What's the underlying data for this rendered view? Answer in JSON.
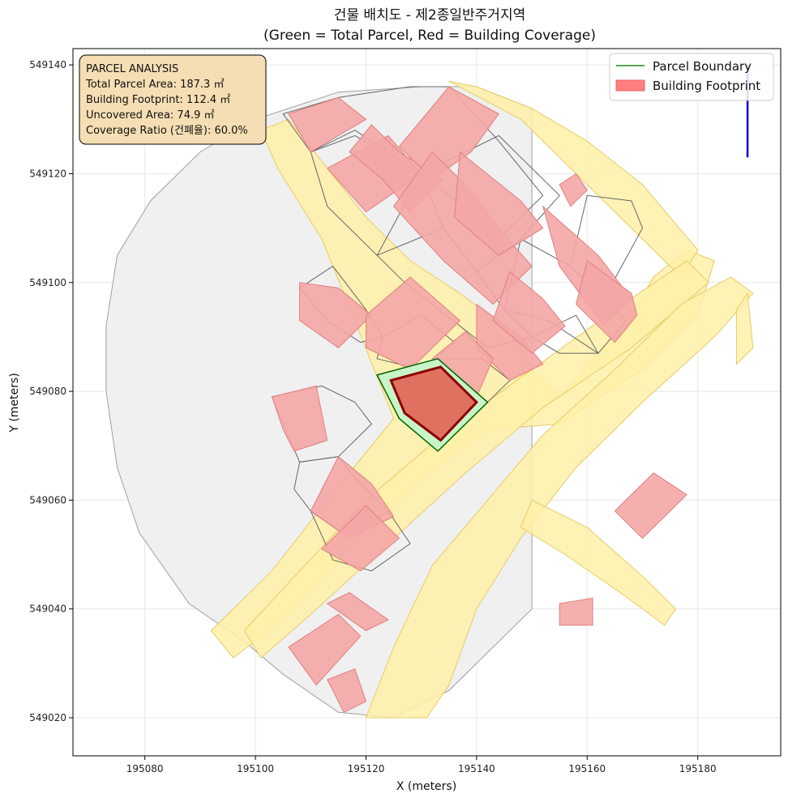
{
  "chart_data": {
    "type": "map",
    "title_line1": "건물 배치도 - 제2종일반주거지역",
    "title_line2": "(Green = Total Parcel, Red = Building Coverage)",
    "xlabel": "X (meters)",
    "ylabel": "Y (meters)",
    "xlim": [
      195067,
      195195
    ],
    "ylim": [
      549013,
      549143
    ],
    "xticks": [
      195080,
      195100,
      195120,
      195140,
      195160,
      195180
    ],
    "yticks": [
      549020,
      549040,
      549060,
      549080,
      549100,
      549120,
      549140
    ],
    "grid": true,
    "legend": {
      "position": "top-right",
      "items": [
        {
          "label": "Parcel Boundary",
          "kind": "line",
          "color": "#228b22"
        },
        {
          "label": "Building Footprint",
          "kind": "patch",
          "color": "#ff7f7f"
        }
      ]
    },
    "info_box": {
      "lines": [
        "PARCEL ANALYSIS",
        "Total Parcel Area: 187.3 ㎡",
        "Building Footprint: 112.4 ㎡",
        "Uncovered Area: 74.9 ㎡",
        "Coverage Ratio (건폐율): 60.0%"
      ]
    },
    "colors": {
      "parcel_fill": "#c8f5c8",
      "parcel_edge": "#006400",
      "target_building_fill": "#e07060",
      "target_building_edge": "#8b0000",
      "building_fill": "#f4a6a6",
      "building_edge": "#e07f7f",
      "road_fill": "#fff0a8",
      "road_edge": "#e6cc66",
      "background_parcel_fill": "#f0f0f0",
      "north_arrow": "#0000cc",
      "info_box_fill": "#f5deb3"
    },
    "target_parcel": [
      [
        195122,
        549083
      ],
      [
        195133,
        549086
      ],
      [
        195142,
        549078
      ],
      [
        195133,
        549069
      ],
      [
        195126,
        549075
      ]
    ],
    "target_building": [
      [
        195124.5,
        549082
      ],
      [
        195133.5,
        549084.5
      ],
      [
        195140,
        549078
      ],
      [
        195133.5,
        549071
      ],
      [
        195127,
        549076
      ]
    ],
    "context_area": [
      [
        195100,
        549130
      ],
      [
        195090,
        549124
      ],
      [
        195081,
        549115
      ],
      [
        195075,
        549105
      ],
      [
        195073,
        549092
      ],
      [
        195073,
        549080
      ],
      [
        195075,
        549066
      ],
      [
        195079,
        549054
      ],
      [
        195088,
        549041
      ],
      [
        195098,
        549034
      ],
      [
        195105,
        549028
      ],
      [
        195115,
        549021
      ],
      [
        195125,
        549020
      ],
      [
        195135,
        549025
      ],
      [
        195150,
        549040
      ],
      [
        195150,
        549110
      ],
      [
        195150,
        549132
      ],
      [
        195140,
        549136
      ],
      [
        195130,
        549136
      ],
      [
        195115,
        549135
      ]
    ],
    "parcel_outlines": [
      [
        [
          195105,
          549131
        ],
        [
          195115,
          549134
        ],
        [
          195128,
          549136
        ],
        [
          195135,
          549136
        ],
        [
          195144,
          549126
        ],
        [
          195152,
          549116
        ],
        [
          195144,
          549108
        ],
        [
          195140,
          549112
        ],
        [
          195130,
          549120
        ],
        [
          195118,
          549127
        ],
        [
          195110,
          549124
        ]
      ],
      [
        [
          195110,
          549124
        ],
        [
          195118,
          549128
        ],
        [
          195130,
          549120
        ],
        [
          195122,
          549105
        ],
        [
          195113,
          549114
        ]
      ],
      [
        [
          195130,
          549120
        ],
        [
          195144,
          549127
        ],
        [
          195155,
          549116
        ],
        [
          195148,
          549108
        ],
        [
          195140,
          549102
        ],
        [
          195134,
          549110
        ]
      ],
      [
        [
          195122,
          549105
        ],
        [
          195134,
          549110
        ],
        [
          195140,
          549102
        ],
        [
          195145,
          549095
        ],
        [
          195150,
          549090
        ],
        [
          195142,
          549088
        ],
        [
          195132,
          549096
        ],
        [
          195127,
          549100
        ]
      ],
      [
        [
          195148,
          549108
        ],
        [
          195157,
          549103
        ],
        [
          195167,
          549093
        ],
        [
          195162,
          549087
        ],
        [
          195153,
          549093
        ],
        [
          195145,
          549095
        ]
      ],
      [
        [
          195157,
          549103
        ],
        [
          195163,
          549097
        ],
        [
          195170,
          549110
        ],
        [
          195168,
          549115
        ],
        [
          195160,
          549116
        ]
      ],
      [
        [
          195150,
          549090
        ],
        [
          195155,
          549087
        ],
        [
          195162,
          549087
        ],
        [
          195158,
          549094
        ]
      ],
      [
        [
          195114,
          549103
        ],
        [
          195120,
          549095
        ],
        [
          195123,
          549090
        ],
        [
          195119,
          549089
        ],
        [
          195113,
          549093
        ],
        [
          195108,
          549099
        ]
      ],
      [
        [
          195123,
          549090
        ],
        [
          195130,
          549094
        ],
        [
          195136,
          549089
        ],
        [
          195130,
          549084
        ],
        [
          195122,
          549086
        ]
      ],
      [
        [
          195132,
          549086
        ],
        [
          195141,
          549086
        ],
        [
          195146,
          549082
        ],
        [
          195142,
          549078
        ],
        [
          195135,
          549083
        ]
      ],
      [
        [
          195103,
          549079
        ],
        [
          195112,
          549081
        ],
        [
          195118,
          549078
        ],
        [
          195121,
          549074
        ],
        [
          195115,
          549068
        ],
        [
          195108,
          549067
        ]
      ],
      [
        [
          195108,
          549067
        ],
        [
          195115,
          549068
        ],
        [
          195118,
          549064
        ],
        [
          195124,
          549058
        ],
        [
          195117,
          549053
        ],
        [
          195110,
          549058
        ],
        [
          195107,
          549062
        ]
      ],
      [
        [
          195110,
          549058
        ],
        [
          195117,
          549053
        ],
        [
          195124,
          549058
        ],
        [
          195128,
          549052
        ],
        [
          195121,
          549047
        ],
        [
          195114,
          549049
        ]
      ]
    ],
    "buildings": [
      [
        [
          195106,
          549131
        ],
        [
          195115,
          549134
        ],
        [
          195120,
          549130
        ],
        [
          195110,
          549124
        ]
      ],
      [
        [
          195113,
          549121
        ],
        [
          195124,
          549127
        ],
        [
          195130,
          549120
        ],
        [
          195120,
          549113
        ]
      ],
      [
        [
          195121,
          549129
        ],
        [
          195126,
          549124
        ],
        [
          195134,
          549119
        ],
        [
          195128,
          549113
        ],
        [
          195123,
          549119
        ],
        [
          195117,
          549124
        ]
      ],
      [
        [
          195126,
          549125
        ],
        [
          195135,
          549136
        ],
        [
          195144,
          549131
        ],
        [
          195139,
          549124
        ],
        [
          195132,
          549119
        ]
      ],
      [
        [
          195125,
          549114
        ],
        [
          195134,
          549104
        ],
        [
          195143,
          549096
        ],
        [
          195150,
          549103
        ],
        [
          195144,
          549110
        ],
        [
          195138,
          549118
        ],
        [
          195132,
          549124
        ]
      ],
      [
        [
          195137,
          549124
        ],
        [
          195148,
          549115
        ],
        [
          195152,
          549110
        ],
        [
          195144,
          549105
        ],
        [
          195136,
          549112
        ]
      ],
      [
        [
          195155,
          549118
        ],
        [
          195158,
          549120
        ],
        [
          195160,
          549117
        ],
        [
          195157,
          549114
        ]
      ],
      [
        [
          195152,
          549114
        ],
        [
          195162,
          549105
        ],
        [
          195168,
          549097
        ],
        [
          195163,
          549092
        ],
        [
          195155,
          549103
        ]
      ],
      [
        [
          195160,
          549104
        ],
        [
          195168,
          549098
        ],
        [
          195169,
          549094
        ],
        [
          195165,
          549089
        ],
        [
          195158,
          549096
        ]
      ],
      [
        [
          195140,
          549096
        ],
        [
          195148,
          549090
        ],
        [
          195152,
          549085
        ],
        [
          195146,
          549082
        ],
        [
          195140,
          549088
        ]
      ],
      [
        [
          195146,
          549102
        ],
        [
          195152,
          549097
        ],
        [
          195156,
          549092
        ],
        [
          195150,
          549087
        ],
        [
          195143,
          549093
        ]
      ],
      [
        [
          195108,
          549100
        ],
        [
          195115,
          549099
        ],
        [
          195121,
          549094
        ],
        [
          195115,
          549088
        ],
        [
          195108,
          549093
        ]
      ],
      [
        [
          195120,
          549094
        ],
        [
          195128,
          549101
        ],
        [
          195137,
          549093
        ],
        [
          195128,
          549084
        ],
        [
          195120,
          549088
        ]
      ],
      [
        [
          195132,
          549086
        ],
        [
          195138,
          549091
        ],
        [
          195143,
          549086
        ],
        [
          195140,
          549079
        ],
        [
          195135,
          549083
        ]
      ],
      [
        [
          195103,
          549079
        ],
        [
          195111,
          549081
        ],
        [
          195113,
          549071
        ],
        [
          195107,
          549069
        ],
        [
          195105,
          549073
        ]
      ],
      [
        [
          195110,
          549058
        ],
        [
          195117,
          549053
        ],
        [
          195125,
          549057
        ],
        [
          195121,
          549063
        ],
        [
          195115,
          549068
        ]
      ],
      [
        [
          195112,
          549051
        ],
        [
          195119,
          549047
        ],
        [
          195126,
          549053
        ],
        [
          195120,
          549059
        ]
      ],
      [
        [
          195113,
          549041
        ],
        [
          195120,
          549036
        ],
        [
          195124,
          549038
        ],
        [
          195117,
          549043
        ]
      ],
      [
        [
          195106,
          549033
        ],
        [
          195115,
          549039
        ],
        [
          195119,
          549035
        ],
        [
          195111,
          549026
        ]
      ],
      [
        [
          195113,
          549027
        ],
        [
          195118,
          549029
        ],
        [
          195120,
          549023
        ],
        [
          195116,
          549021
        ]
      ],
      [
        [
          195165,
          549058
        ],
        [
          195172,
          549065
        ],
        [
          195178,
          549061
        ],
        [
          195170,
          549053
        ]
      ],
      [
        [
          195155,
          549041
        ],
        [
          195161,
          549042
        ],
        [
          195161,
          549037
        ],
        [
          195155,
          549037
        ]
      ]
    ],
    "roads": [
      [
        [
          195101,
          549128
        ],
        [
          195106,
          549130
        ],
        [
          195113,
          549121
        ],
        [
          195120,
          549112
        ],
        [
          195128,
          549104
        ],
        [
          195137,
          549098
        ],
        [
          195146,
          549091
        ],
        [
          195150,
          549084
        ],
        [
          195155,
          549079
        ],
        [
          195168,
          549094
        ],
        [
          195172,
          549101
        ],
        [
          195178,
          549106
        ],
        [
          195183,
          549104
        ],
        [
          195180,
          549094
        ],
        [
          195170,
          549084
        ],
        [
          195155,
          549074
        ],
        [
          195142,
          549073
        ],
        [
          195130,
          549064
        ],
        [
          195118,
          549052
        ],
        [
          195105,
          549038
        ],
        [
          195096,
          549031
        ],
        [
          195092,
          549036
        ],
        [
          195103,
          549047
        ],
        [
          195113,
          549060
        ],
        [
          195125,
          549075
        ],
        [
          195118,
          549093
        ],
        [
          195112,
          549108
        ],
        [
          195104,
          549121
        ]
      ],
      [
        [
          195140,
          549136
        ],
        [
          195150,
          549132
        ],
        [
          195160,
          549126
        ],
        [
          195170,
          549118
        ],
        [
          195180,
          549106
        ],
        [
          195177,
          549101
        ],
        [
          195168,
          549110
        ],
        [
          195158,
          549120
        ],
        [
          195148,
          549130
        ],
        [
          195135,
          549137
        ]
      ],
      [
        [
          195098,
          549036
        ],
        [
          195108,
          549047
        ],
        [
          195120,
          549060
        ],
        [
          195135,
          549073
        ],
        [
          195150,
          549084
        ],
        [
          195165,
          549095
        ],
        [
          195178,
          549104
        ],
        [
          195182,
          549100
        ],
        [
          195168,
          549088
        ],
        [
          195152,
          549077
        ],
        [
          195138,
          549065
        ],
        [
          195124,
          549052
        ],
        [
          195110,
          549039
        ],
        [
          195101,
          549031
        ]
      ],
      [
        [
          195120,
          549020
        ],
        [
          195125,
          549033
        ],
        [
          195132,
          549048
        ],
        [
          195142,
          549060
        ],
        [
          195152,
          549072
        ],
        [
          195165,
          549084
        ],
        [
          195177,
          549096
        ],
        [
          195186,
          549101
        ],
        [
          195190,
          549098
        ],
        [
          195183,
          549090
        ],
        [
          195170,
          549078
        ],
        [
          195158,
          549066
        ],
        [
          195148,
          549053
        ],
        [
          195140,
          549040
        ],
        [
          195135,
          549026
        ],
        [
          195131,
          549020
        ]
      ],
      [
        [
          195150,
          549060
        ],
        [
          195160,
          549055
        ],
        [
          195170,
          549046
        ],
        [
          195176,
          549040
        ],
        [
          195174,
          549037
        ],
        [
          195166,
          549043
        ],
        [
          195156,
          549050
        ],
        [
          195148,
          549055
        ]
      ],
      [
        [
          195187,
          549095
        ],
        [
          195189,
          549098
        ],
        [
          195190,
          549088
        ],
        [
          195187,
          549085
        ]
      ]
    ],
    "north_arrow": {
      "x": 195189,
      "y_from": 549123,
      "y_to": 549140
    }
  }
}
